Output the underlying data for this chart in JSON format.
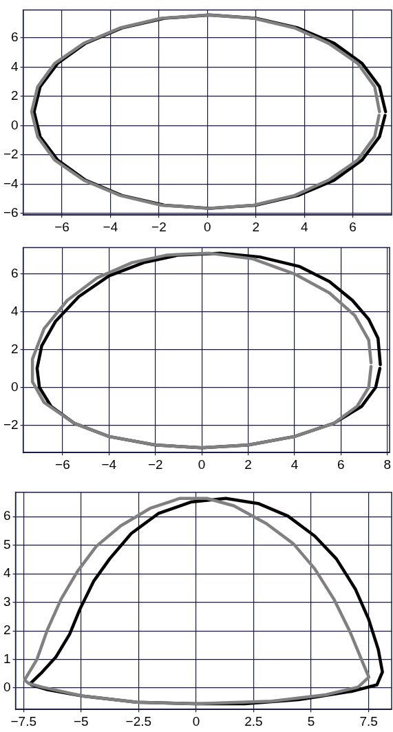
{
  "chart_data": [
    {
      "type": "line",
      "xlim": [
        -7.6,
        7.6
      ],
      "ylim": [
        -6.1,
        7.9
      ],
      "xticks": [
        -6,
        -4,
        -2,
        0,
        2,
        4,
        6
      ],
      "yticks": [
        -6,
        -4,
        -2,
        0,
        2,
        4,
        6
      ],
      "grid": true,
      "legend": false,
      "marker": "none",
      "line_style": "solid",
      "series": [
        {
          "color": "#808080",
          "x": [
            7.1,
            6.9,
            6.2,
            5.0,
            3.6,
            1.9,
            0.0,
            -1.9,
            -3.6,
            -5.1,
            -6.3,
            -7.0,
            -7.25,
            -7.0,
            -6.3,
            -5.1,
            -3.6,
            -1.9,
            0.0,
            1.9,
            3.6,
            5.0,
            6.2,
            6.9,
            7.08
          ],
          "values": [
            0.95,
            2.66,
            4.25,
            5.62,
            6.67,
            7.33,
            7.55,
            7.33,
            6.67,
            5.62,
            4.25,
            2.66,
            0.95,
            -0.76,
            -2.35,
            -3.72,
            -4.77,
            -5.43,
            -5.65,
            -5.43,
            -4.77,
            -3.72,
            -2.35,
            -0.76,
            0.7
          ]
        },
        {
          "color": "#000000",
          "x": [
            7.35,
            7.1,
            6.38,
            5.23,
            3.73,
            1.98,
            0.1,
            -1.78,
            -3.53,
            -5.03,
            -6.18,
            -6.9,
            -7.15,
            -6.9,
            -6.18,
            -5.03,
            -3.53,
            -1.78,
            0.1,
            1.98,
            3.73,
            5.23,
            6.38,
            7.1,
            7.33
          ],
          "values": [
            0.95,
            2.66,
            4.25,
            5.62,
            6.67,
            7.33,
            7.55,
            7.33,
            6.67,
            5.62,
            4.25,
            2.66,
            0.95,
            -0.76,
            -2.35,
            -3.72,
            -4.77,
            -5.43,
            -5.65,
            -5.43,
            -4.77,
            -3.72,
            -2.35,
            -0.76,
            0.7
          ]
        }
      ]
    },
    {
      "type": "line",
      "xlim": [
        -7.7,
        8.1
      ],
      "ylim": [
        -3.45,
        7.4
      ],
      "xticks": [
        -6,
        -4,
        -2,
        0,
        2,
        4,
        6,
        8
      ],
      "yticks": [
        -2,
        0,
        2,
        4,
        6
      ],
      "grid": true,
      "legend": false,
      "marker": "none",
      "line_style": "solid",
      "series": [
        {
          "color": "#808080",
          "x": [
            7.3,
            7.2,
            6.6,
            5.5,
            4,
            2.2,
            0.3,
            -1.5,
            -3,
            -4.5,
            -5.8,
            -6.8,
            -7.3,
            -7.3,
            -6.8,
            -5.5,
            -4,
            -2,
            0,
            2,
            4,
            5.7,
            6.7,
            7.2,
            7.3
          ],
          "values": [
            1.3,
            2.5,
            3.8,
            5.0,
            6.0,
            6.8,
            7.1,
            7.0,
            6.6,
            5.8,
            4.6,
            3.1,
            1.5,
            0.3,
            -0.8,
            -1.9,
            -2.6,
            -3.05,
            -3.2,
            -3.05,
            -2.6,
            -1.9,
            -1.0,
            0,
            1.1
          ]
        },
        {
          "color": "#000000",
          "x": [
            7.7,
            7.6,
            7.2,
            6.5,
            5.5,
            4.2,
            2.5,
            0.8,
            -1,
            -2.5,
            -4,
            -5.3,
            -6.3,
            -6.9,
            -7.1,
            -7.0,
            -6.5,
            -5.5,
            -4,
            -2,
            0,
            2,
            4,
            5.7,
            6.9,
            7.5,
            7.68
          ],
          "values": [
            1.2,
            2.6,
            3.6,
            4.6,
            5.6,
            6.4,
            6.9,
            7.1,
            7.0,
            6.6,
            5.9,
            4.8,
            3.5,
            2.2,
            1.0,
            0,
            -1,
            -1.9,
            -2.6,
            -3.05,
            -3.2,
            -3.05,
            -2.6,
            -1.9,
            -1,
            0,
            1.0
          ]
        }
      ]
    },
    {
      "type": "line",
      "xlim": [
        -7.85,
        8.5
      ],
      "ylim": [
        -0.75,
        6.85
      ],
      "xticks": [
        -7.5,
        -5,
        -2.5,
        0,
        2.5,
        5,
        7.5
      ],
      "yticks": [
        0,
        1,
        2,
        3,
        4,
        5,
        6
      ],
      "grid": true,
      "legend": false,
      "marker": "none",
      "line_style": "solid",
      "series": [
        {
          "color": "#808080",
          "x": [
            -7.45,
            -6.92,
            -6.46,
            -5.87,
            -5.16,
            -4.34,
            -3.29,
            -2.0,
            -0.7,
            0.47,
            1.64,
            3.05,
            4.23,
            5.16,
            5.99,
            6.69,
            7.28,
            7.51,
            7.04,
            5.63,
            3.29,
            0,
            -2.58,
            -4.93,
            -6.69,
            -7.28,
            -7.4
          ],
          "values": [
            0.29,
            1.0,
            2.05,
            3.11,
            4.08,
            4.96,
            5.67,
            6.29,
            6.64,
            6.64,
            6.38,
            5.76,
            5.05,
            4.17,
            3.11,
            1.97,
            0.82,
            0.38,
            0.03,
            -0.24,
            -0.46,
            -0.55,
            -0.5,
            -0.28,
            0.03,
            0.16,
            0.24
          ]
        },
        {
          "color": "#000000",
          "x": [
            -7.2,
            -6.7,
            -6.1,
            -5.5,
            -5.05,
            -4.46,
            -3.76,
            -2.82,
            -1.64,
            -0.23,
            1.29,
            2.7,
            3.99,
            5.16,
            6.1,
            6.92,
            7.5,
            7.92,
            8.1,
            7.86,
            6.81,
            4.46,
            2.11,
            0,
            -2.58,
            -4.93,
            -6.46,
            -7.16
          ],
          "values": [
            0.16,
            0.55,
            1.08,
            1.88,
            2.76,
            3.73,
            4.52,
            5.41,
            6.11,
            6.51,
            6.64,
            6.46,
            6.02,
            5.32,
            4.52,
            3.47,
            2.41,
            1.35,
            0.56,
            0.11,
            -0.11,
            -0.41,
            -0.55,
            -0.55,
            -0.5,
            -0.28,
            -0.06,
            0.11
          ]
        }
      ]
    }
  ]
}
